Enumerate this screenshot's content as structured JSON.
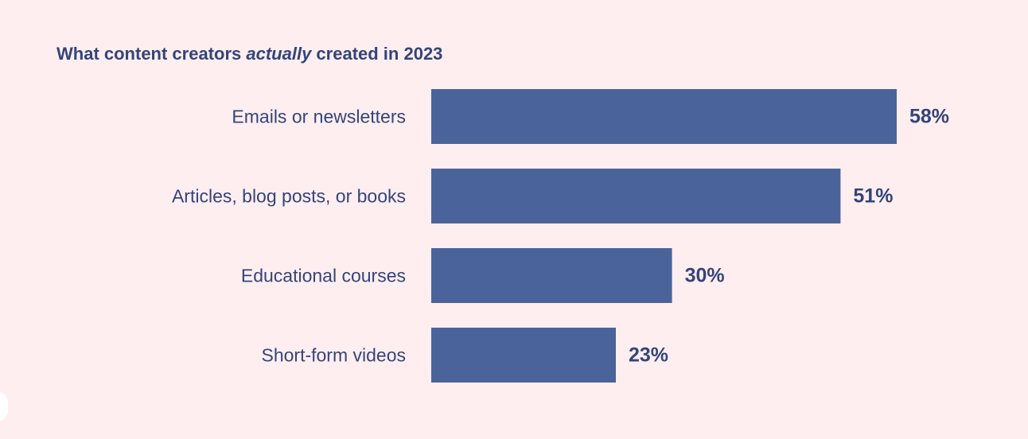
{
  "title": {
    "before": "What content creators ",
    "emphasis": "actually",
    "after": " created in 2023"
  },
  "colors": {
    "background": "#ffeef0",
    "bar": "#4a649b",
    "text": "#33457a"
  },
  "chart_data": {
    "type": "bar",
    "orientation": "horizontal",
    "title": "What content creators actually created in 2023",
    "categories": [
      "Emails or newsletters",
      "Articles, blog posts, or books",
      "Educational courses",
      "Short-form videos"
    ],
    "values": [
      58,
      51,
      30,
      23
    ],
    "value_labels": [
      "58%",
      "51%",
      "30%",
      "23%"
    ],
    "unit": "%",
    "xlim": [
      0,
      58
    ],
    "grid": false,
    "legend": "none"
  }
}
